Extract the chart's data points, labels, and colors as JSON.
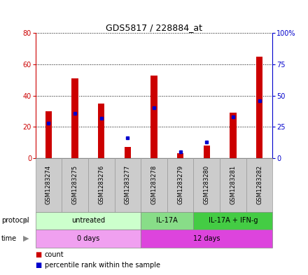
{
  "title": "GDS5817 / 228884_at",
  "samples": [
    "GSM1283274",
    "GSM1283275",
    "GSM1283276",
    "GSM1283277",
    "GSM1283278",
    "GSM1283279",
    "GSM1283280",
    "GSM1283281",
    "GSM1283282"
  ],
  "counts": [
    30,
    51,
    35,
    7,
    53,
    3,
    8,
    29,
    65
  ],
  "percentile_ranks": [
    28,
    36,
    32,
    16,
    40,
    5,
    13,
    33,
    46
  ],
  "ylim_left": [
    0,
    80
  ],
  "ylim_right": [
    0,
    100
  ],
  "yticks_left": [
    0,
    20,
    40,
    60,
    80
  ],
  "yticks_right": [
    0,
    25,
    50,
    75,
    100
  ],
  "yticklabels_right": [
    "0",
    "25",
    "50",
    "75",
    "100%"
  ],
  "bar_color": "#cc0000",
  "dot_color": "#0000cc",
  "protocol_groups": [
    {
      "label": "untreated",
      "start": 0,
      "end": 4,
      "color": "#ccffcc"
    },
    {
      "label": "IL-17A",
      "start": 4,
      "end": 6,
      "color": "#88dd88"
    },
    {
      "label": "IL-17A + IFN-g",
      "start": 6,
      "end": 9,
      "color": "#44cc44"
    }
  ],
  "time_groups": [
    {
      "label": "0 days",
      "start": 0,
      "end": 4,
      "color": "#f0a0f0"
    },
    {
      "label": "12 days",
      "start": 4,
      "end": 9,
      "color": "#dd44dd"
    }
  ],
  "legend_items": [
    {
      "label": "count",
      "color": "#cc0000"
    },
    {
      "label": "percentile rank within the sample",
      "color": "#0000cc"
    }
  ],
  "bar_width": 0.25,
  "sample_box_color": "#cccccc",
  "sample_box_edge": "#999999",
  "left_tick_color": "#cc0000",
  "right_tick_color": "#0000cc"
}
